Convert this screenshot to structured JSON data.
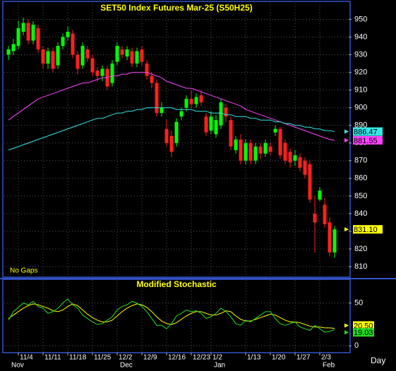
{
  "chart_data": [
    {
      "type": "candlestick",
      "title": "SET50  Index  Futures  Mar-25  (S50H25)",
      "note": "No  Gaps",
      "x_label": "Day",
      "categories": [
        null,
        null,
        "11/4",
        null,
        null,
        null,
        null,
        "11/11",
        null,
        null,
        null,
        null,
        "11/18",
        null,
        null,
        null,
        null,
        "11/25",
        null,
        null,
        null,
        null,
        "12/2",
        null,
        null,
        null,
        null,
        "12/9",
        null,
        null,
        null,
        null,
        "12/16",
        null,
        null,
        null,
        null,
        "12/23",
        null,
        null,
        null,
        "1/2",
        null,
        null,
        null,
        null,
        null,
        null,
        "1/13",
        null,
        null,
        null,
        null,
        "1/20",
        null,
        null,
        null,
        null,
        "1/27",
        null,
        null,
        null,
        null,
        "2/3",
        null,
        null,
        null
      ],
      "months": [
        "Nov",
        null,
        null,
        null,
        null,
        null,
        null,
        null,
        null,
        null,
        null,
        null,
        null,
        null,
        null,
        null,
        null,
        null,
        null,
        null,
        null,
        null,
        "Dec",
        null,
        null,
        null,
        null,
        null,
        null,
        null,
        null,
        null,
        null,
        null,
        null,
        null,
        null,
        null,
        null,
        null,
        null,
        "Jan",
        null,
        null,
        null,
        null,
        null,
        null,
        null,
        null,
        null,
        null,
        null,
        null,
        null,
        null,
        null,
        null,
        null,
        null,
        null,
        null,
        null,
        "Feb",
        null,
        null,
        null
      ],
      "open": [
        930,
        932,
        935,
        943,
        948,
        938,
        945,
        933,
        925,
        932,
        924,
        935,
        940,
        942,
        930,
        924,
        933,
        928,
        921,
        918,
        922,
        914,
        926,
        933,
        929,
        932,
        925,
        933,
        925,
        918,
        914,
        897,
        888,
        884,
        880,
        895,
        900,
        905,
        902,
        907,
        895,
        887,
        885,
        890,
        900,
        893,
        876,
        882,
        870,
        880,
        870,
        878,
        874,
        878,
        886,
        888,
        880,
        875,
        870,
        872,
        870,
        868,
        840,
        848,
        845,
        835,
        818
      ],
      "high": [
        935,
        939,
        949,
        951,
        950,
        949,
        947,
        935,
        934,
        934,
        937,
        942,
        946,
        944,
        932,
        937,
        935,
        930,
        923,
        924,
        924,
        927,
        937,
        935,
        935,
        934,
        934,
        935,
        927,
        920,
        916,
        903,
        893,
        887,
        894,
        900,
        907,
        910,
        908,
        910,
        897,
        898,
        896,
        905,
        902,
        895,
        884,
        885,
        882,
        882,
        880,
        880,
        882,
        880,
        890,
        889,
        882,
        877,
        876,
        874,
        872,
        870,
        850,
        855,
        849,
        838,
        833
      ],
      "low": [
        927,
        930,
        933,
        941,
        936,
        936,
        931,
        922,
        922,
        920,
        922,
        933,
        938,
        928,
        919,
        922,
        926,
        918,
        915,
        915,
        910,
        912,
        924,
        928,
        927,
        923,
        923,
        924,
        916,
        911,
        895,
        895,
        878,
        872,
        878,
        893,
        898,
        900,
        900,
        901,
        884,
        885,
        883,
        888,
        892,
        876,
        874,
        868,
        868,
        868,
        868,
        871,
        872,
        873,
        884,
        871,
        868,
        866,
        867,
        864,
        860,
        846,
        818,
        847,
        832,
        816,
        815
      ],
      "close": [
        933,
        936,
        945,
        948,
        938,
        947,
        933,
        925,
        932,
        922,
        935,
        940,
        943,
        930,
        922,
        935,
        928,
        920,
        918,
        922,
        912,
        925,
        935,
        930,
        933,
        925,
        932,
        926,
        918,
        914,
        897,
        900,
        880,
        875,
        892,
        898,
        905,
        902,
        906,
        903,
        886,
        895,
        893,
        903,
        895,
        878,
        882,
        870,
        880,
        870,
        878,
        874,
        880,
        875,
        888,
        873,
        870,
        869,
        873,
        866,
        862,
        848,
        835,
        853,
        834,
        818,
        831.1
      ],
      "close_label": "831.10",
      "up_color": "#00ff00",
      "down_color": "#ff2020",
      "label_color": "#ffff00",
      "series": [
        {
          "color": "#ff44ff",
          "values": [
            893,
            895,
            897,
            899,
            901,
            903,
            905,
            906,
            907,
            908,
            909,
            910,
            911,
            912,
            913,
            914,
            914,
            915,
            916,
            917,
            917,
            918,
            918,
            919,
            919,
            920,
            920,
            920,
            920,
            919,
            918,
            917,
            915,
            914,
            913,
            912,
            911,
            911,
            910,
            909,
            908,
            907,
            906,
            905,
            904,
            903,
            902,
            901,
            899,
            898,
            897,
            896,
            895,
            894,
            893,
            892,
            891,
            890,
            889,
            888,
            887,
            886,
            885,
            884,
            883,
            882,
            881.55
          ]
        },
        {
          "color": "#33e8e8",
          "values": [
            876,
            877,
            878,
            879,
            880,
            881,
            882,
            883,
            884,
            885,
            886,
            887,
            888,
            889,
            890,
            891,
            892,
            893,
            894,
            894,
            895,
            896,
            897,
            897,
            898,
            898,
            899,
            899,
            900,
            900,
            900,
            900,
            900,
            900,
            899,
            899,
            899,
            899,
            898,
            898,
            898,
            897,
            897,
            897,
            896,
            896,
            895,
            895,
            895,
            894,
            894,
            893,
            893,
            893,
            892,
            892,
            891,
            891,
            890,
            890,
            889,
            889,
            888,
            888,
            887,
            887,
            886.47
          ]
        }
      ],
      "ylim": [
        804,
        959
      ],
      "yticks": [
        810,
        820,
        830,
        840,
        850,
        860,
        870,
        880,
        890,
        900,
        910,
        920,
        930,
        940,
        950
      ],
      "grid": true
    },
    {
      "type": "line",
      "title": "Modified  Stochastic",
      "series": [
        {
          "color": "#ffff00",
          "last_label": "20.50",
          "values": [
            32,
            36,
            40,
            44,
            47,
            49,
            48,
            46,
            44,
            41,
            40,
            42,
            46,
            49,
            47,
            42,
            37,
            33,
            30,
            28,
            28,
            30,
            35,
            40,
            44,
            47,
            49,
            48,
            45,
            40,
            34,
            29,
            26,
            25,
            27,
            31,
            35,
            38,
            40,
            40,
            38,
            36,
            36,
            38,
            41,
            40,
            35,
            31,
            29,
            29,
            31,
            33,
            35,
            37,
            36,
            33,
            30,
            28,
            28,
            27,
            25,
            23,
            22,
            22,
            21,
            21,
            20.5
          ]
        },
        {
          "color": "#22dd22",
          "values": [
            30,
            40,
            45,
            50,
            48,
            52,
            46,
            44,
            38,
            40,
            44,
            50,
            55,
            48,
            44,
            36,
            32,
            28,
            25,
            26,
            30,
            34,
            42,
            46,
            48,
            52,
            50,
            46,
            40,
            32,
            24,
            24,
            20,
            26,
            35,
            38,
            42,
            40,
            41,
            38,
            32,
            34,
            38,
            44,
            40,
            34,
            26,
            24,
            30,
            28,
            32,
            36,
            40,
            40,
            32,
            26,
            24,
            26,
            28,
            22,
            20,
            18,
            24,
            20,
            16,
            17,
            19.03
          ]
        }
      ],
      "ylim": [
        -8,
        77
      ],
      "yticks": [
        0,
        50
      ],
      "grid": true
    }
  ]
}
